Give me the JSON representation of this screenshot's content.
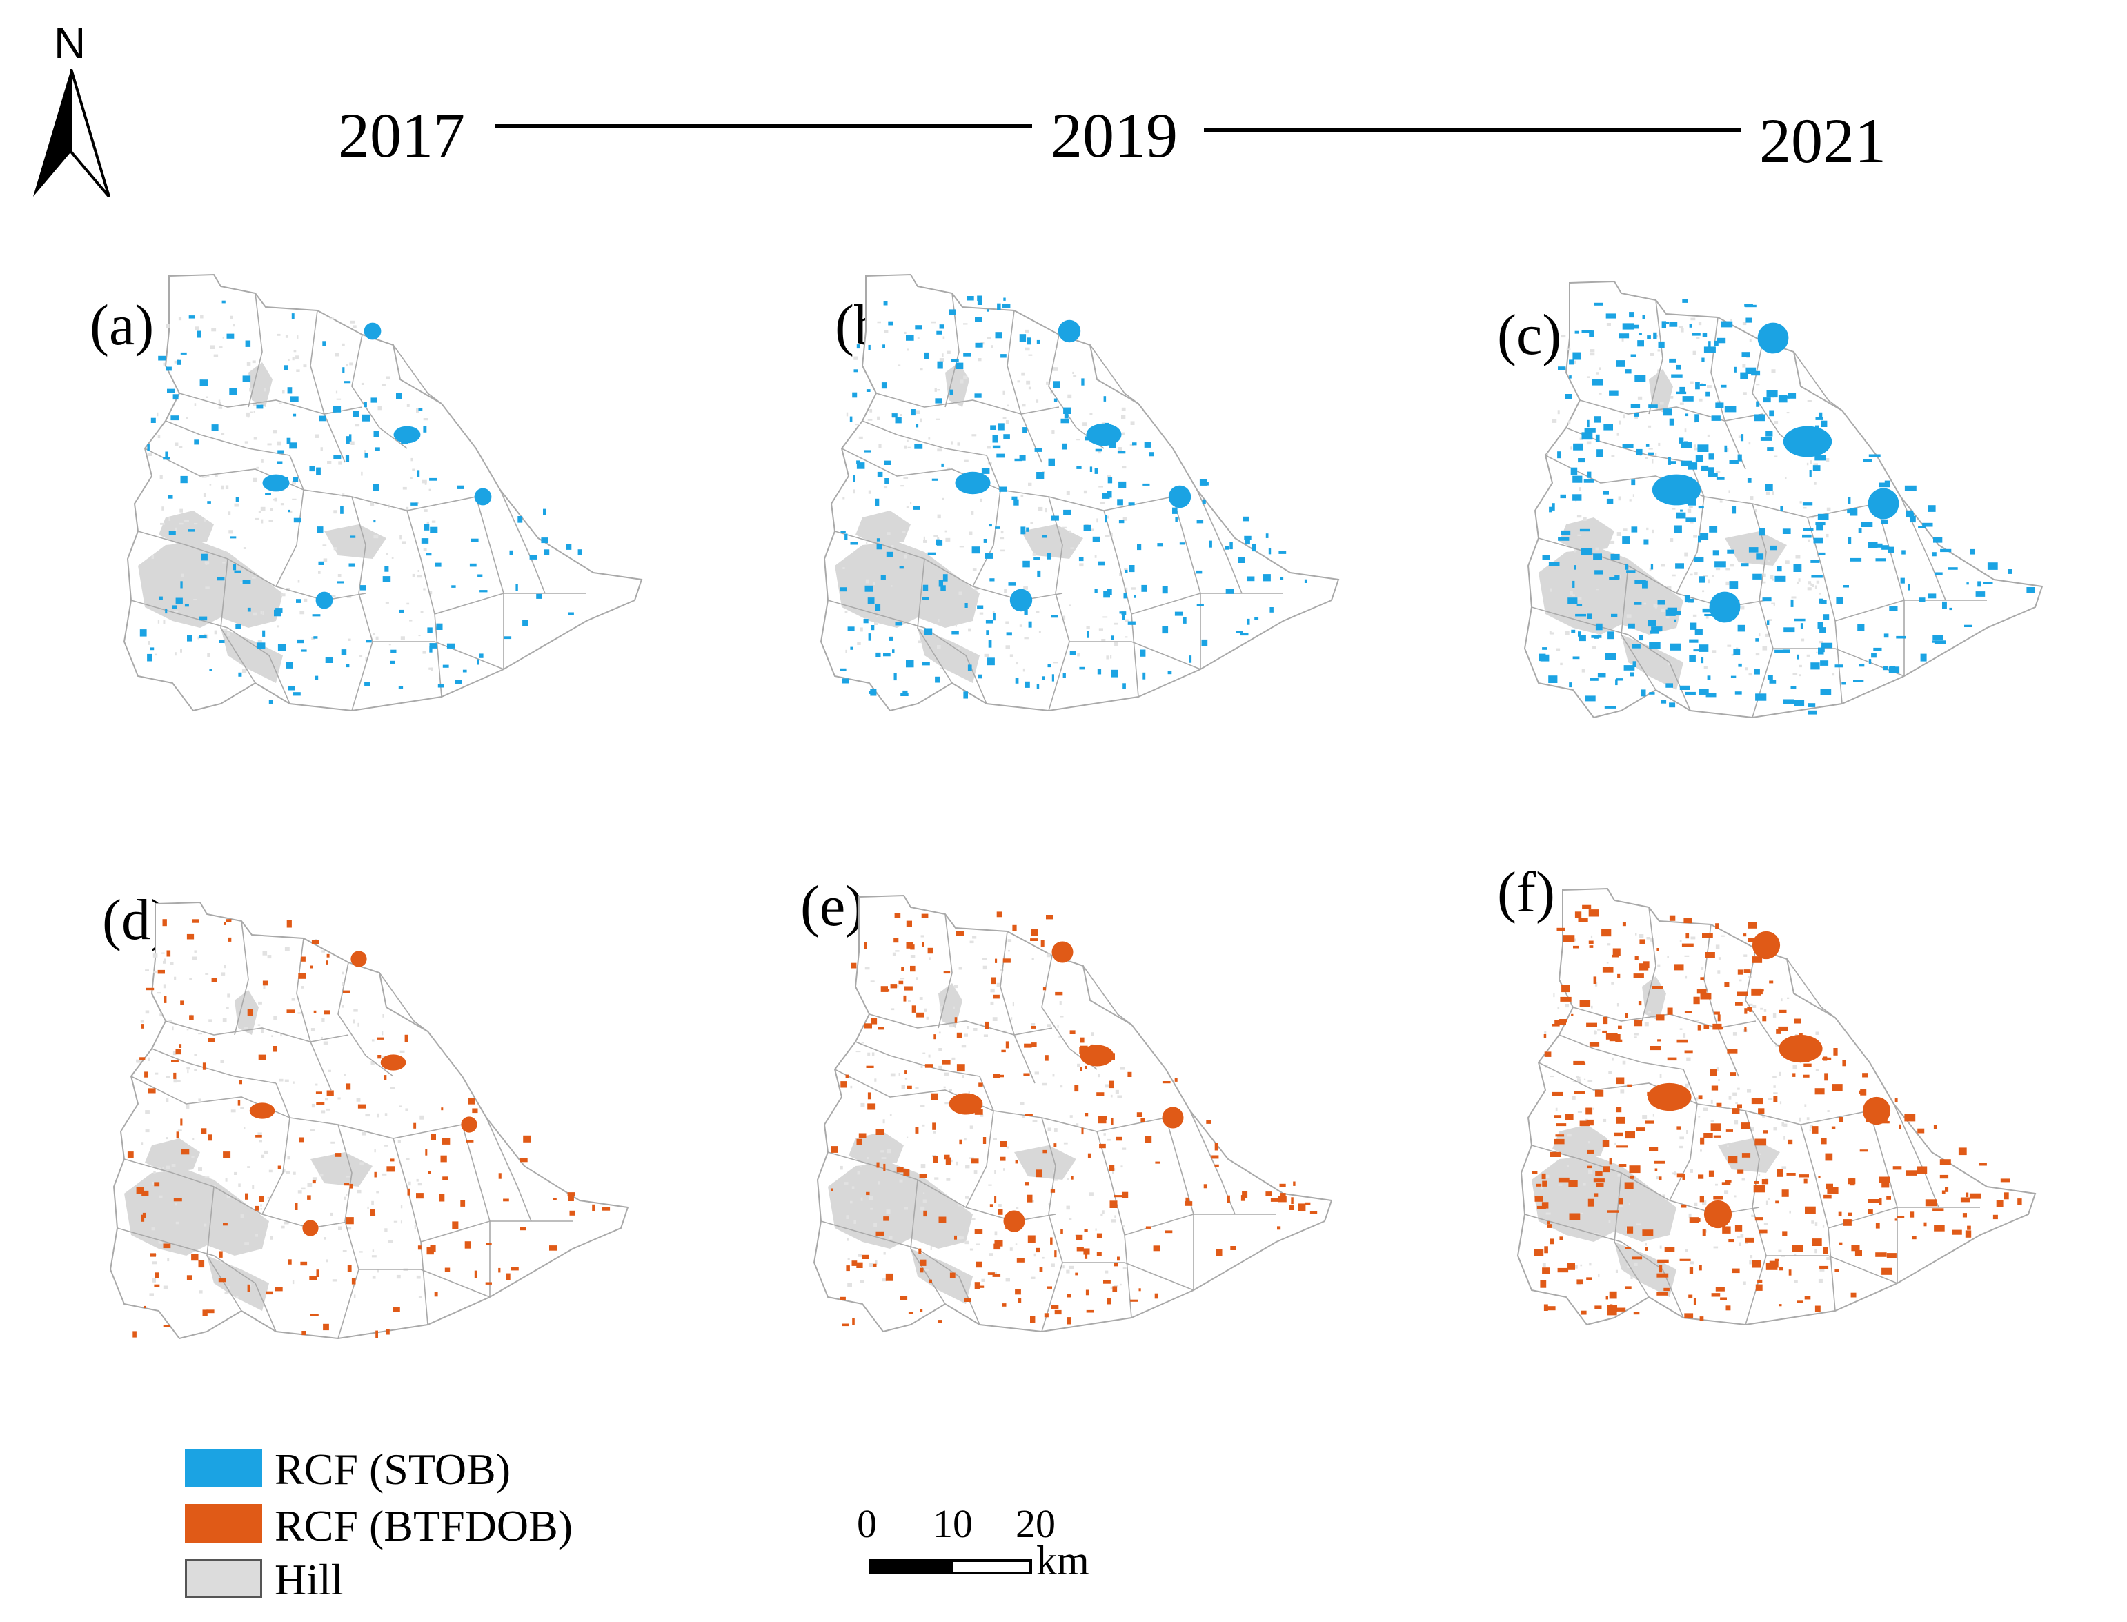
{
  "north": {
    "label": "N",
    "icon": "north-arrow-icon"
  },
  "timeline": {
    "years": [
      "2017",
      "2019",
      "2021"
    ]
  },
  "panels": [
    {
      "id": "a",
      "label": "(a)",
      "year": "2017",
      "layer": "RCF (STOB)",
      "color": "#1ba3e3",
      "density": 0.35
    },
    {
      "id": "b",
      "label": "(b)",
      "year": "2019",
      "layer": "RCF (STOB)",
      "color": "#1ba3e3",
      "density": 0.6
    },
    {
      "id": "c",
      "label": "(c)",
      "year": "2021",
      "layer": "RCF (STOB)",
      "color": "#1ba3e3",
      "density": 1.0
    },
    {
      "id": "d",
      "label": "(d)",
      "year": "2017",
      "layer": "RCF (BTFDOB)",
      "color": "#e05a17",
      "density": 0.3
    },
    {
      "id": "e",
      "label": "(e)",
      "year": "2019",
      "layer": "RCF (BTFDOB)",
      "color": "#e05a17",
      "density": 0.55
    },
    {
      "id": "f",
      "label": "(f)",
      "year": "2021",
      "layer": "RCF (BTFDOB)",
      "color": "#e05a17",
      "density": 0.85
    }
  ],
  "legend": [
    {
      "label": "RCF (STOB)",
      "color": "#1ba3e3"
    },
    {
      "label": "RCF (BTFDOB)",
      "color": "#e05a17"
    },
    {
      "label": "Hill",
      "color": "#dcdcdc"
    }
  ],
  "scale_bar": {
    "ticks": [
      "0",
      "10",
      "20"
    ],
    "unit": "km"
  },
  "colors": {
    "boundary": "#a9a9a9",
    "hill": "#d8d8d8",
    "stob": "#1ba3e3",
    "btfdob": "#e05a17"
  }
}
